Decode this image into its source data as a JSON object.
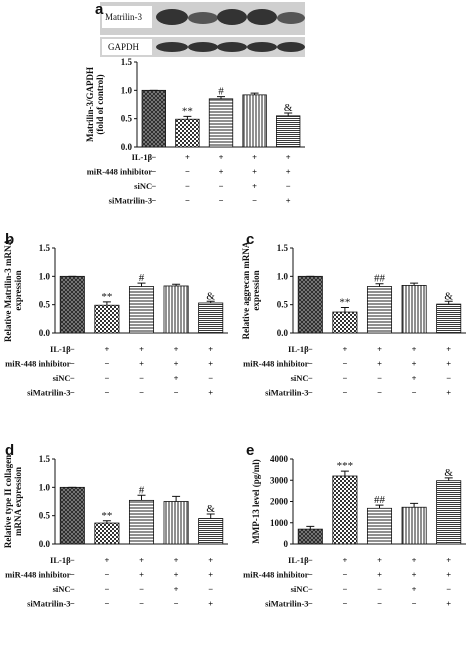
{
  "chart_data": [
    {
      "type": "bar",
      "panel": "a",
      "blot_labels": [
        "Matrilin-3",
        "GAPDH"
      ],
      "ylabel": [
        "Matrilin-3/GAPDH",
        "(fold of control)"
      ],
      "values": [
        1.0,
        0.49,
        0.85,
        0.92,
        0.55
      ],
      "errors": [
        0,
        0.05,
        0.04,
        0.03,
        0.05
      ],
      "annotations": [
        null,
        "**",
        "#",
        null,
        "&"
      ],
      "ylim": [
        0,
        1.5
      ],
      "yticks": [
        {
          "value": 0,
          "label": "0.0"
        },
        {
          "value": 0.5,
          "label": "0.5"
        },
        {
          "value": 1,
          "label": "1.0"
        },
        {
          "value": 1.5,
          "label": "1.5"
        }
      ],
      "patterns": [
        "crosshatch",
        "checker",
        "hlines",
        "vlines",
        "hdense"
      ],
      "conditions": [
        {
          "name": "IL-1β",
          "signs": [
            "−",
            "+",
            "+",
            "+",
            "+"
          ]
        },
        {
          "name": "miR-448 inhibitor",
          "signs": [
            "−",
            "−",
            "+",
            "+",
            "+"
          ]
        },
        {
          "name": "siNC",
          "signs": [
            "−",
            "−",
            "−",
            "+",
            "−"
          ]
        },
        {
          "name": "siMatrilin-3",
          "signs": [
            "−",
            "−",
            "−",
            "−",
            "+"
          ]
        }
      ]
    },
    {
      "type": "bar",
      "panel": "b",
      "ylabel": [
        "Relative Matrilin-3 mRNA",
        "expression"
      ],
      "values": [
        1.0,
        0.49,
        0.82,
        0.83,
        0.53
      ],
      "errors": [
        0,
        0.06,
        0.06,
        0.03,
        0.03
      ],
      "annotations": [
        null,
        "**",
        "#",
        null,
        "&"
      ],
      "ylim": [
        0,
        1.5
      ],
      "yticks": [
        {
          "value": 0,
          "label": "0.0"
        },
        {
          "value": 0.5,
          "label": "0.5"
        },
        {
          "value": 1,
          "label": "1.0"
        },
        {
          "value": 1.5,
          "label": "1.5"
        }
      ],
      "patterns": [
        "crosshatch",
        "checker",
        "hlines",
        "vlines",
        "hdense"
      ],
      "conditions": [
        {
          "name": "IL-1β",
          "signs": [
            "−",
            "+",
            "+",
            "+",
            "+"
          ]
        },
        {
          "name": "miR-448 inhibitor",
          "signs": [
            "−",
            "−",
            "+",
            "+",
            "+"
          ]
        },
        {
          "name": "siNC",
          "signs": [
            "−",
            "−",
            "−",
            "+",
            "−"
          ]
        },
        {
          "name": "siMatrilin-3",
          "signs": [
            "−",
            "−",
            "−",
            "−",
            "+"
          ]
        }
      ]
    },
    {
      "type": "bar",
      "panel": "c",
      "ylabel": [
        "Relative aggrecan mRNA",
        "expression"
      ],
      "values": [
        1.0,
        0.37,
        0.82,
        0.84,
        0.51
      ],
      "errors": [
        0,
        0.08,
        0.05,
        0.04,
        0.05
      ],
      "annotations": [
        null,
        "**",
        "##",
        null,
        "&"
      ],
      "ylim": [
        0,
        1.5
      ],
      "yticks": [
        {
          "value": 0,
          "label": "0.0"
        },
        {
          "value": 0.5,
          "label": "0.5"
        },
        {
          "value": 1,
          "label": "1.0"
        },
        {
          "value": 1.5,
          "label": "1.5"
        }
      ],
      "patterns": [
        "crosshatch",
        "checker",
        "hlines",
        "vlines",
        "hdense"
      ],
      "conditions": [
        {
          "name": "IL-1β",
          "signs": [
            "−",
            "+",
            "+",
            "+",
            "+"
          ]
        },
        {
          "name": "miR-448 inhibitor",
          "signs": [
            "−",
            "−",
            "+",
            "+",
            "+"
          ]
        },
        {
          "name": "siNC",
          "signs": [
            "−",
            "−",
            "−",
            "+",
            "−"
          ]
        },
        {
          "name": "siMatrilin-3",
          "signs": [
            "−",
            "−",
            "−",
            "−",
            "+"
          ]
        }
      ]
    },
    {
      "type": "bar",
      "panel": "d",
      "ylabel": [
        "Relative type II collagen",
        "mRNA expression"
      ],
      "values": [
        1.0,
        0.37,
        0.77,
        0.75,
        0.45
      ],
      "errors": [
        0,
        0.04,
        0.09,
        0.09,
        0.08
      ],
      "annotations": [
        null,
        "**",
        "#",
        null,
        "&"
      ],
      "ylim": [
        0,
        1.5
      ],
      "yticks": [
        {
          "value": 0,
          "label": "0.0"
        },
        {
          "value": 0.5,
          "label": "0.5"
        },
        {
          "value": 1,
          "label": "1.0"
        },
        {
          "value": 1.5,
          "label": "1.5"
        }
      ],
      "patterns": [
        "crosshatch",
        "checker",
        "hlines",
        "vlines",
        "hdense"
      ],
      "conditions": [
        {
          "name": "IL-1β",
          "signs": [
            "−",
            "+",
            "+",
            "+",
            "+"
          ]
        },
        {
          "name": "miR-448 inhibitor",
          "signs": [
            "−",
            "−",
            "+",
            "+",
            "+"
          ]
        },
        {
          "name": "siNC",
          "signs": [
            "−",
            "−",
            "−",
            "+",
            "−"
          ]
        },
        {
          "name": "siMatrilin-3",
          "signs": [
            "−",
            "−",
            "−",
            "−",
            "+"
          ]
        }
      ]
    },
    {
      "type": "bar",
      "panel": "e",
      "ylabel": [
        "MMP-13 level (pg/ml)"
      ],
      "values": [
        700,
        3200,
        1680,
        1730,
        2980
      ],
      "errors": [
        130,
        230,
        150,
        180,
        130
      ],
      "annotations": [
        null,
        "***",
        "##",
        null,
        "&"
      ],
      "ylim": [
        0,
        4000
      ],
      "yticks": [
        0,
        1000,
        2000,
        3000,
        4000
      ],
      "patterns": [
        "crosshatch",
        "checker",
        "hlines",
        "vlines",
        "hdense"
      ],
      "conditions": [
        {
          "name": "IL-1β",
          "signs": [
            "−",
            "+",
            "+",
            "+",
            "+"
          ]
        },
        {
          "name": "miR-448 inhibitor",
          "signs": [
            "−",
            "−",
            "+",
            "+",
            "+"
          ]
        },
        {
          "name": "siNC",
          "signs": [
            "−",
            "−",
            "−",
            "+",
            "−"
          ]
        },
        {
          "name": "siMatrilin-3",
          "signs": [
            "−",
            "−",
            "−",
            "−",
            "+"
          ]
        }
      ]
    }
  ]
}
